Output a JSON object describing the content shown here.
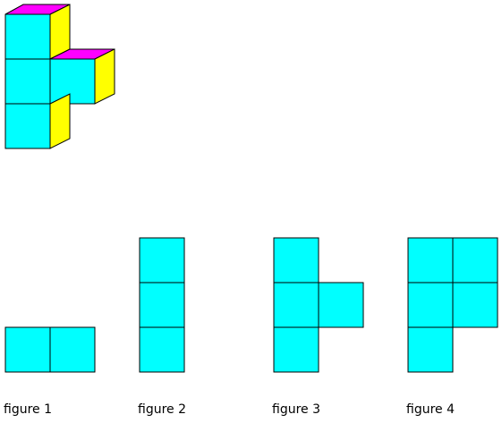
{
  "colors": {
    "front": "#00ffff",
    "top": "#ff00ff",
    "side": "#ffff00",
    "stroke": "#000000"
  },
  "solid": {
    "description_icon": "cube-stack-3d",
    "cube_count": 4
  },
  "views": [
    {
      "caption": "figure 1",
      "shape": "two-squares-horizontal"
    },
    {
      "caption": "figure 2",
      "shape": "three-squares-vertical"
    },
    {
      "caption": "figure 3",
      "shape": "t-shape-right-nub"
    },
    {
      "caption": "figure 4",
      "shape": "p-shape-five-squares"
    }
  ]
}
